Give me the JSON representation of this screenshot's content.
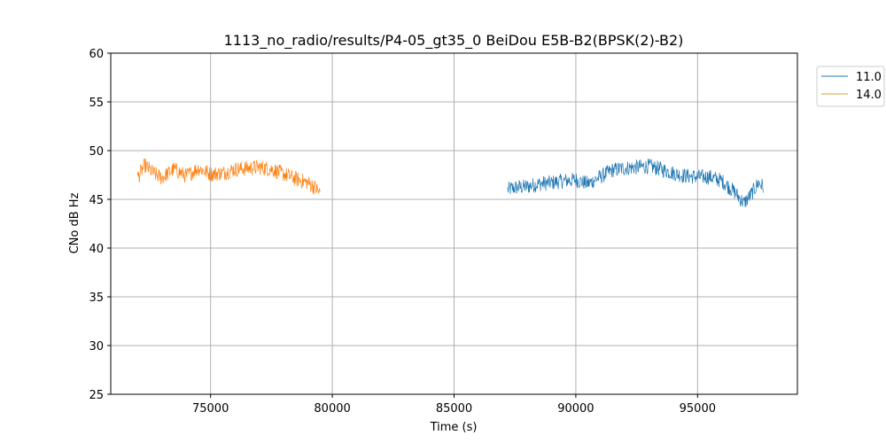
{
  "chart_data": {
    "type": "line",
    "title": "1113_no_radio/results/P4-05_gt35_0 BeiDou E5B-B2(BPSK(2)-B2)",
    "xlabel": "Time (s)",
    "ylabel": "CNo dB Hz",
    "xlim": [
      70900,
      99100
    ],
    "ylim": [
      25,
      60
    ],
    "xticks": [
      75000,
      80000,
      85000,
      90000,
      95000
    ],
    "yticks": [
      25,
      30,
      35,
      40,
      45,
      50,
      55,
      60
    ],
    "grid": true,
    "legend_position": "outside-top-right",
    "series": [
      {
        "name": "11.0",
        "color": "#1f77b4",
        "x": [
          87200,
          87500,
          88000,
          88500,
          89000,
          89500,
          90000,
          90500,
          91000,
          91500,
          92000,
          92500,
          93000,
          93500,
          94000,
          94500,
          95000,
          95500,
          96000,
          96500,
          96900,
          97200,
          97500,
          97700
        ],
        "y": [
          46.0,
          46.2,
          46.3,
          46.6,
          46.7,
          46.9,
          47.0,
          46.6,
          47.3,
          48.0,
          48.2,
          48.3,
          48.4,
          48.1,
          47.7,
          47.4,
          47.3,
          47.3,
          46.9,
          45.8,
          44.6,
          45.5,
          46.7,
          46.3
        ],
        "noise": 0.8
      },
      {
        "name": "14.0",
        "color": "#ff7f0e",
        "legend_color": "#d4a32f",
        "x": [
          72000,
          72300,
          72700,
          73000,
          73500,
          74000,
          74500,
          75000,
          75500,
          76000,
          76500,
          77000,
          77500,
          78000,
          78500,
          79000,
          79300,
          79500
        ],
        "y": [
          47.2,
          48.5,
          47.6,
          47.2,
          48.1,
          47.4,
          48.2,
          47.6,
          47.7,
          48.1,
          48.2,
          48.3,
          48.1,
          47.6,
          47.1,
          46.7,
          46.2,
          45.6
        ],
        "noise": 0.8
      }
    ]
  }
}
